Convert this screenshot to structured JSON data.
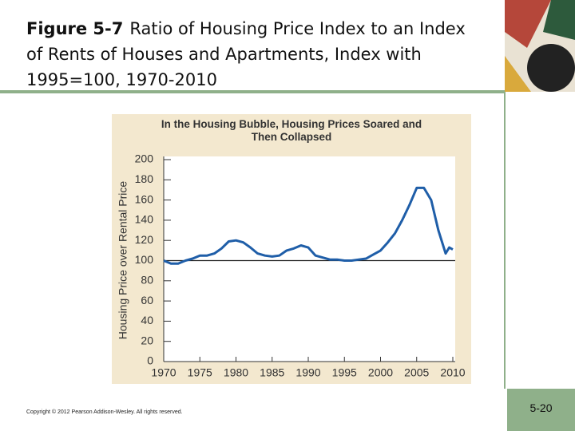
{
  "header": {
    "figure_label": "Figure 5-7",
    "title": "Ratio of Housing Price Index to an Index of Rents of Houses and Apartments, Index with 1995=100, 1970-2010"
  },
  "chart_data": {
    "type": "line",
    "title": "In the Housing Bubble, Housing Prices Soared and Then Collapsed",
    "ylabel": "Housing Price over Rental Price",
    "x": [
      1970,
      1971,
      1972,
      1973,
      1974,
      1975,
      1976,
      1977,
      1978,
      1979,
      1980,
      1981,
      1982,
      1983,
      1984,
      1985,
      1986,
      1987,
      1988,
      1989,
      1990,
      1991,
      1992,
      1993,
      1994,
      1995,
      1996,
      1997,
      1998,
      1999,
      2000,
      2001,
      2002,
      2003,
      2004,
      2005,
      2006,
      2007,
      2008,
      2009,
      2009.5,
      2010
    ],
    "values": [
      100,
      97,
      97,
      100,
      102,
      105,
      105,
      107,
      112,
      119,
      120,
      118,
      113,
      107,
      105,
      104,
      105,
      110,
      112,
      115,
      113,
      105,
      103,
      101,
      101,
      100,
      100,
      101,
      102,
      106,
      110,
      118,
      127,
      140,
      155,
      172,
      172,
      160,
      130,
      107,
      113,
      111
    ],
    "color": "#1f5ea8",
    "reference_line": 100,
    "xlim": [
      1970,
      2010
    ],
    "xticks": [
      1970,
      1975,
      1980,
      1985,
      1990,
      1995,
      2000,
      2005,
      2010
    ],
    "ylim": [
      0,
      200
    ],
    "yticks": [
      0,
      20,
      40,
      60,
      80,
      100,
      120,
      140,
      160,
      180,
      200
    ]
  },
  "footer": {
    "copyright": "Copyright © 2012 Pearson Addison-Wesley. All rights reserved.",
    "page": "5-20"
  }
}
